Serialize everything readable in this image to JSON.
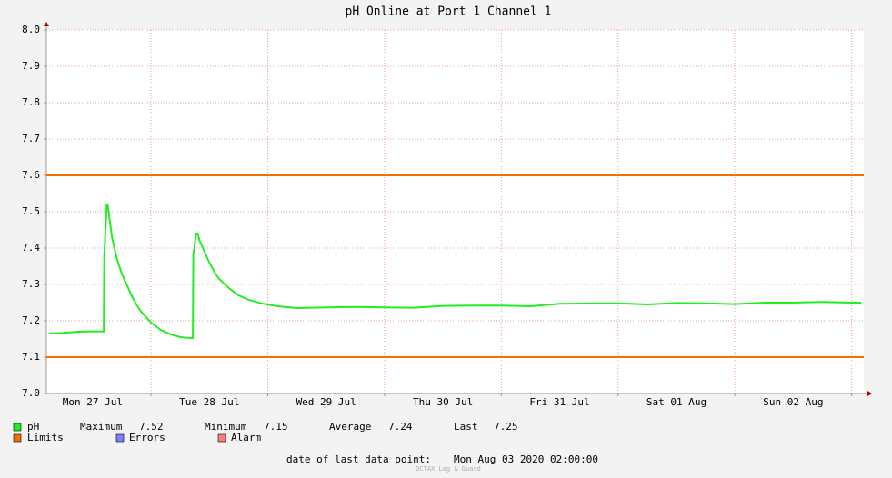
{
  "chart_data": {
    "type": "line",
    "title": "pH Online at Port 1 Channel 1",
    "x": [
      3,
      6,
      9,
      12,
      14.3,
      14.4,
      14.9,
      15.1,
      15.4,
      16,
      17,
      18,
      19,
      20,
      21,
      22,
      24,
      26,
      28,
      30,
      32.6,
      32.7,
      33.3,
      33.6,
      34,
      35,
      36,
      37,
      38,
      40,
      42,
      44,
      47,
      50,
      54,
      60,
      66,
      72,
      78,
      84,
      90,
      96,
      102,
      108,
      114,
      120,
      126,
      132,
      138,
      144,
      150,
      156,
      162,
      168,
      170
    ],
    "series": [
      {
        "name": "pH",
        "color": "#22ee22",
        "values": [
          7.165,
          7.167,
          7.17,
          7.171,
          7.171,
          7.38,
          7.52,
          7.52,
          7.49,
          7.43,
          7.37,
          7.33,
          7.3,
          7.27,
          7.245,
          7.225,
          7.195,
          7.175,
          7.163,
          7.155,
          7.152,
          7.38,
          7.44,
          7.44,
          7.42,
          7.39,
          7.36,
          7.335,
          7.315,
          7.29,
          7.27,
          7.258,
          7.247,
          7.24,
          7.235,
          7.237,
          7.238,
          7.237,
          7.236,
          7.241,
          7.242,
          7.242,
          7.24,
          7.247,
          7.248,
          7.248,
          7.245,
          7.249,
          7.248,
          7.246,
          7.25,
          7.25,
          7.252,
          7.25,
          7.25
        ]
      }
    ],
    "limits": {
      "name": "Limits",
      "color": "#f07000",
      "values": [
        7.1,
        7.6
      ]
    },
    "legend_extra": [
      {
        "name": "Errors",
        "color": "#7f7fff"
      },
      {
        "name": "Alarm",
        "color": "#ff7f7f"
      }
    ],
    "stats": [
      {
        "label": "Maximum",
        "value": 7.52
      },
      {
        "label": "Minimum",
        "value": 7.15
      },
      {
        "label": "Average",
        "value": 7.24
      },
      {
        "label": "Last",
        "value": 7.25
      }
    ],
    "last_point_label": "date of last data point:",
    "last_point": "Mon Aug 03 2020 02:00:00",
    "watermark": "OCTAX Log & Guard",
    "xlim": [
      2.5,
      170.5
    ],
    "xticks": [
      {
        "value": 12,
        "label": "Mon 27 Jul"
      },
      {
        "value": 36,
        "label": "Tue 28 Jul"
      },
      {
        "value": 60,
        "label": "Wed 29 Jul"
      },
      {
        "value": 84,
        "label": "Thu 30 Jul"
      },
      {
        "value": 108,
        "label": "Fri 31 Jul"
      },
      {
        "value": 132,
        "label": "Sat 01 Aug"
      },
      {
        "value": 156,
        "label": "Sun 02 Aug"
      }
    ],
    "x_grid": [
      24,
      48,
      72,
      96,
      120,
      144,
      168
    ],
    "ylim": [
      7.0,
      8.0
    ],
    "yticks": [
      {
        "value": 7.0,
        "label": "7.0"
      },
      7.1,
      7.2,
      7.3,
      7.4,
      7.5,
      7.6,
      7.7,
      7.8,
      7.9,
      {
        "value": 8.0,
        "label": "8.0"
      }
    ],
    "grid": true
  }
}
